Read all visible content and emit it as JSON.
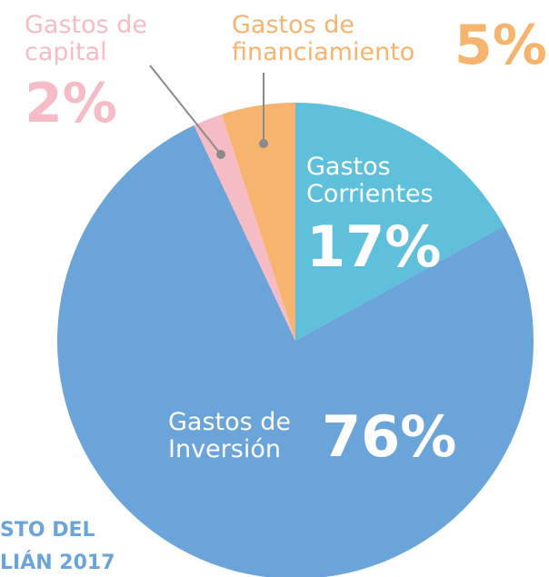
{
  "chart_data": {
    "type": "pie",
    "categories": [
      "Gastos Corrientes",
      "Gastos de Inversión",
      "Gastos de capital",
      "Gastos de financiamiento"
    ],
    "values": [
      17,
      76,
      2,
      5
    ],
    "value_labels": [
      "17%",
      "76%",
      "2%",
      "5%"
    ],
    "colors": [
      "#5ec0da",
      "#6ba4d9",
      "#f5bcc6",
      "#f6b46e"
    ],
    "footer_lines": [
      "STO DEL",
      "LIÁN 2017"
    ]
  }
}
